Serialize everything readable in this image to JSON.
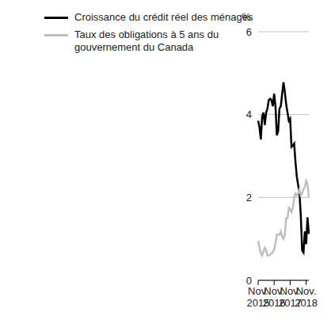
{
  "chart_data": {
    "type": "line",
    "y_label": "%",
    "categories": [
      "Nov. 2015",
      null,
      null,
      null,
      null,
      null,
      null,
      null,
      null,
      null,
      null,
      null,
      "Nov. 2016",
      null,
      null,
      null,
      null,
      null,
      null,
      null,
      null,
      null,
      null,
      null,
      "Nov. 2017",
      null,
      null,
      null,
      null,
      null,
      null,
      null,
      null,
      null,
      null,
      null,
      "Nov. 2018",
      null,
      null
    ],
    "series": [
      {
        "name": "Croissance du crédit réel des ménages",
        "color": "#000000",
        "values": [
          3.85,
          3.7,
          3.4,
          3.95,
          4.05,
          3.75,
          4.05,
          4.15,
          4.35,
          4.38,
          4.35,
          4.2,
          4.5,
          4.2,
          3.5,
          3.6,
          4.15,
          4.2,
          4.5,
          4.78,
          4.55,
          4.25,
          4.05,
          3.85,
          3.9,
          3.22,
          3.25,
          3.3,
          2.85,
          2.5,
          2.3,
          2.1,
          1.55,
          0.72,
          0.67,
          1.18,
          0.87,
          1.52,
          1.12
        ]
      },
      {
        "name": "Taux des obligations à 5 ans du gouvernement du Canada",
        "color": "#bfbfbf",
        "values": [
          0.95,
          0.8,
          0.65,
          0.6,
          0.7,
          0.78,
          0.72,
          0.6,
          0.6,
          0.62,
          0.65,
          0.68,
          0.75,
          0.9,
          1.1,
          1.1,
          1.1,
          1.18,
          1.05,
          1.0,
          1.1,
          1.5,
          1.5,
          1.75,
          1.72,
          1.65,
          1.75,
          2.0,
          2.1,
          2.05,
          2.1,
          2.2,
          2.05,
          2.1,
          2.2,
          2.25,
          2.4,
          2.32,
          2.0
        ]
      }
    ],
    "ylim": [
      0,
      6
    ],
    "yticks": [
      0,
      2,
      4,
      6
    ],
    "grid": true,
    "legend": "top-left"
  }
}
